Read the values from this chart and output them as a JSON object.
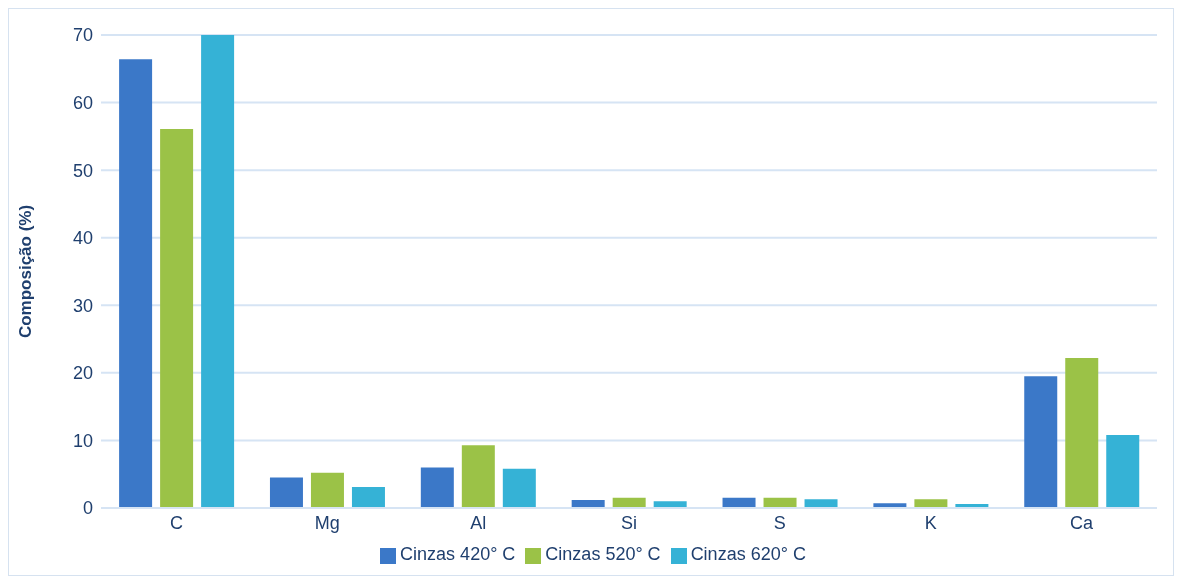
{
  "chart_data": {
    "type": "bar",
    "ylabel": "Composição (%)",
    "categories": [
      "C",
      "Mg",
      "Al",
      "Si",
      "S",
      "K",
      "Ca"
    ],
    "series": [
      {
        "name": "Cinzas 420° C",
        "color": "#3b78c8",
        "values": [
          66.4,
          4.5,
          6.0,
          1.2,
          1.5,
          0.7,
          19.5
        ]
      },
      {
        "name": "Cinzas 520° C",
        "color": "#9bc247",
        "values": [
          56.1,
          5.2,
          9.3,
          1.5,
          1.5,
          1.3,
          22.2
        ]
      },
      {
        "name": "Cinzas 620° C",
        "color": "#35b2d6",
        "values": [
          70.0,
          3.1,
          5.8,
          1.0,
          1.3,
          0.6,
          10.8
        ]
      }
    ],
    "ylim": [
      0,
      70
    ],
    "yticks": [
      0,
      10,
      20,
      30,
      40,
      50,
      60,
      70
    ],
    "grid": "y",
    "legend": "bottom"
  }
}
